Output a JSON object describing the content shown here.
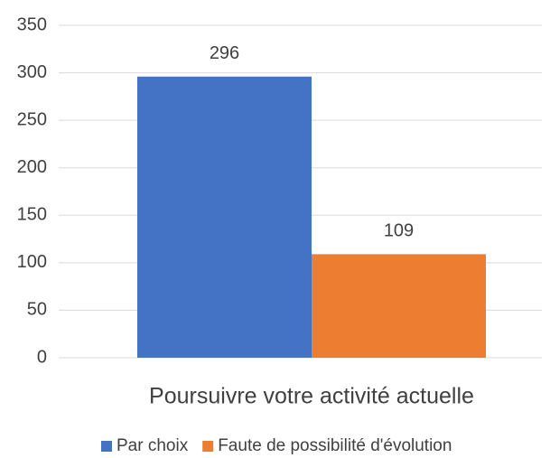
{
  "chart_data": {
    "type": "bar",
    "categories": [
      "Poursuivre votre activité actuelle"
    ],
    "series": [
      {
        "name": "Par choix",
        "color": "#4472c4",
        "values": [
          296
        ]
      },
      {
        "name": "Faute de possibilité d'évolution",
        "color": "#ed7d31",
        "values": [
          109
        ]
      }
    ],
    "ylim": [
      0,
      350
    ],
    "yticks": [
      0,
      50,
      100,
      150,
      200,
      250,
      300,
      350
    ],
    "grid": true,
    "legend": "bottom"
  }
}
